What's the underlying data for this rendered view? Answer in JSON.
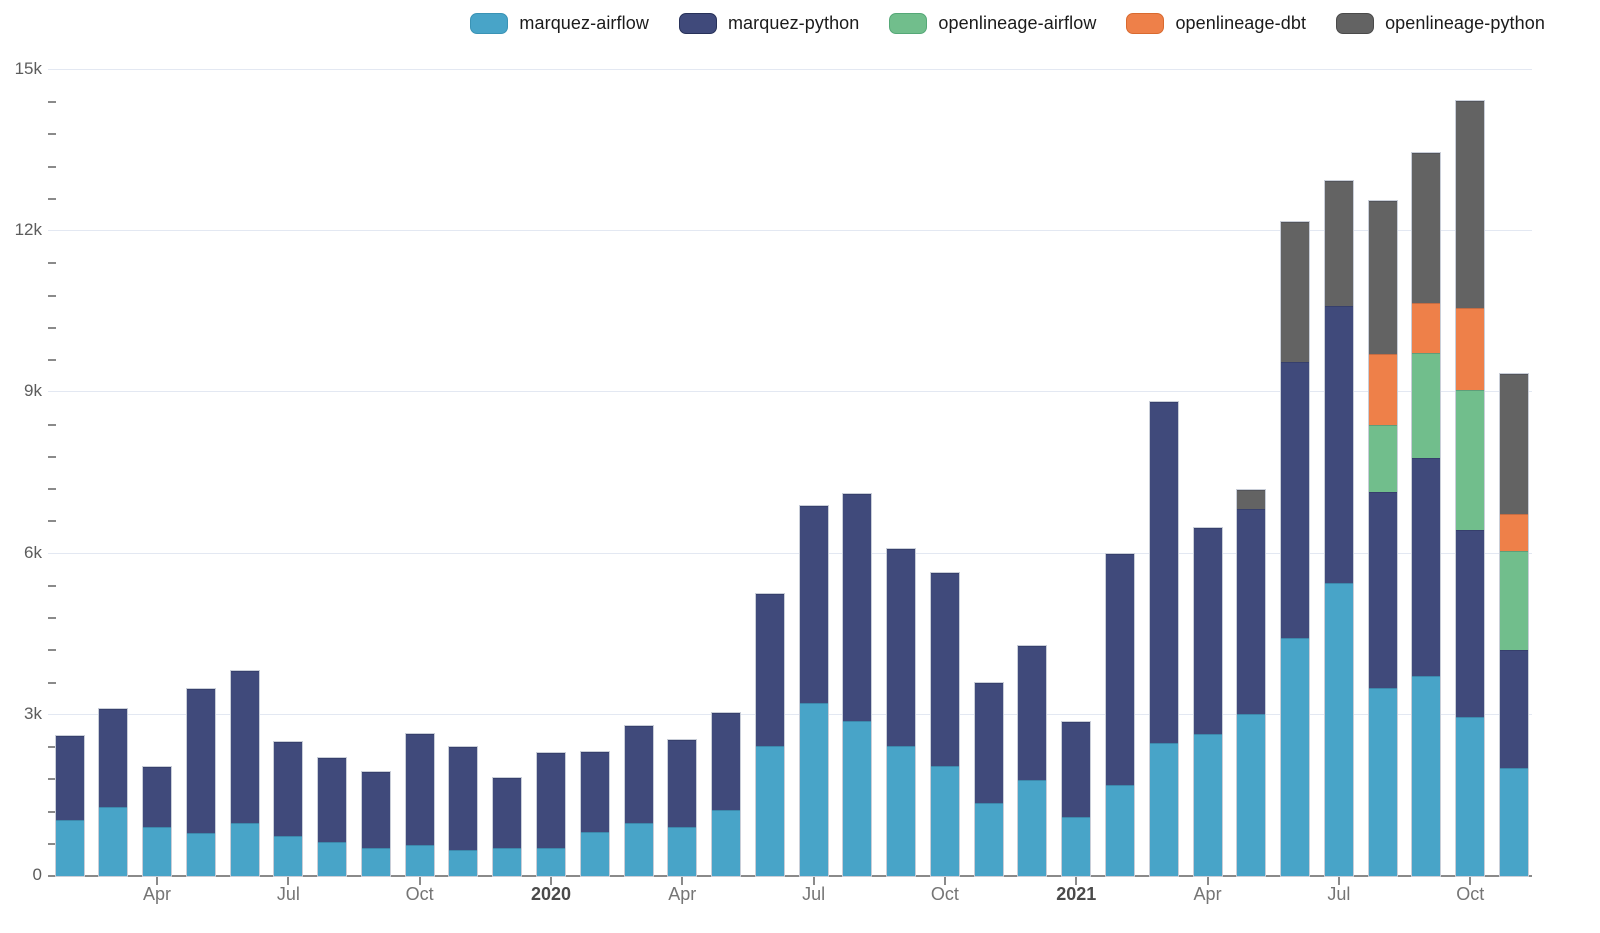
{
  "legend": {
    "items": [
      {
        "label": "marquez-airflow",
        "color": "#48A4C8",
        "border": "#3A93B5"
      },
      {
        "label": "marquez-python",
        "color": "#404A7B",
        "border": "#273159"
      },
      {
        "label": "openlineage-airflow",
        "color": "#71BE8C",
        "border": "#55A877"
      },
      {
        "label": "openlineage-dbt",
        "color": "#EE8049",
        "border": "#D96A2F"
      },
      {
        "label": "openlineage-python",
        "color": "#636363",
        "border": "#4A4A4A"
      }
    ]
  },
  "y_axis": {
    "tick_labels": [
      "0",
      "3k",
      "6k",
      "9k",
      "12k",
      "15k"
    ],
    "max": 15000,
    "major_step": 3000,
    "minor_step": 600
  },
  "x_axis": {
    "ticks": [
      {
        "index": 2,
        "label": "Apr",
        "bold": false
      },
      {
        "index": 5,
        "label": "Jul",
        "bold": false
      },
      {
        "index": 8,
        "label": "Oct",
        "bold": false
      },
      {
        "index": 11,
        "label": "2020",
        "bold": true
      },
      {
        "index": 14,
        "label": "Apr",
        "bold": false
      },
      {
        "index": 17,
        "label": "Jul",
        "bold": false
      },
      {
        "index": 20,
        "label": "Oct",
        "bold": false
      },
      {
        "index": 23,
        "label": "2021",
        "bold": true
      },
      {
        "index": 26,
        "label": "Apr",
        "bold": false
      },
      {
        "index": 29,
        "label": "Jul",
        "bold": false
      },
      {
        "index": 32,
        "label": "Oct",
        "bold": false
      }
    ]
  },
  "chart_data": {
    "type": "bar",
    "stacked": true,
    "grid": true,
    "legend_position": "top-right",
    "ylim": [
      0,
      15000
    ],
    "categories": [
      "Feb 2019",
      "Mar 2019",
      "Apr 2019",
      "May 2019",
      "Jun 2019",
      "Jul 2019",
      "Aug 2019",
      "Sep 2019",
      "Oct 2019",
      "Nov 2019",
      "Dec 2019",
      "Jan 2020",
      "Feb 2020",
      "Mar 2020",
      "Apr 2020",
      "May 2020",
      "Jun 2020",
      "Jul 2020",
      "Aug 2020",
      "Sep 2020",
      "Oct 2020",
      "Nov 2020",
      "Dec 2020",
      "Jan 2021",
      "Feb 2021",
      "Mar 2021",
      "Apr 2021",
      "May 2021",
      "Jun 2021",
      "Jul 2021",
      "Aug 2021",
      "Sep 2021",
      "Oct 2021",
      "Nov 2021"
    ],
    "series": [
      {
        "name": "marquez-airflow",
        "color": "#48A4C8",
        "values": [
          1040,
          1290,
          910,
          800,
          980,
          750,
          640,
          520,
          570,
          480,
          530,
          530,
          810,
          980,
          910,
          1230,
          2420,
          3220,
          2890,
          2420,
          2040,
          1360,
          1790,
          1100,
          1690,
          2480,
          2640,
          3020,
          4430,
          5450,
          3490,
          3730,
          2960,
          2000
        ]
      },
      {
        "name": "marquez-python",
        "color": "#404A7B",
        "values": [
          1560,
          1820,
          1110,
          2680,
          2830,
          1750,
          1550,
          1420,
          2080,
          1920,
          1300,
          1760,
          1500,
          1810,
          1630,
          1800,
          2830,
          3670,
          4210,
          3660,
          3590,
          2240,
          2490,
          1770,
          4310,
          6340,
          3840,
          3810,
          5140,
          5150,
          3660,
          4050,
          3470,
          2200
        ]
      },
      {
        "name": "openlineage-airflow",
        "color": "#71BE8C",
        "values": [
          0,
          0,
          0,
          0,
          0,
          0,
          0,
          0,
          0,
          0,
          0,
          0,
          0,
          0,
          0,
          0,
          0,
          0,
          0,
          0,
          0,
          0,
          0,
          0,
          0,
          0,
          0,
          0,
          0,
          0,
          1250,
          1960,
          2620,
          1850
        ]
      },
      {
        "name": "openlineage-dbt",
        "color": "#EE8049",
        "values": [
          0,
          0,
          0,
          0,
          0,
          0,
          0,
          0,
          0,
          0,
          0,
          0,
          0,
          0,
          0,
          0,
          0,
          0,
          0,
          0,
          0,
          0,
          0,
          0,
          0,
          0,
          0,
          0,
          0,
          0,
          1320,
          930,
          1520,
          690
        ]
      },
      {
        "name": "openlineage-python",
        "color": "#636363",
        "values": [
          0,
          0,
          0,
          0,
          0,
          0,
          0,
          0,
          0,
          0,
          0,
          0,
          0,
          0,
          0,
          0,
          0,
          0,
          0,
          0,
          0,
          0,
          0,
          0,
          0,
          0,
          0,
          350,
          2610,
          2340,
          2850,
          2780,
          3860,
          2610
        ]
      }
    ]
  },
  "ui_colors": {
    "grid": "#E3E8F2",
    "axis": "#8A8A8A",
    "tick": "#8A8A8A",
    "month_label": "#757575",
    "year_label": "#4A4A4A",
    "bar_outline": "#C9CED8",
    "background": "#FFFFFF"
  }
}
